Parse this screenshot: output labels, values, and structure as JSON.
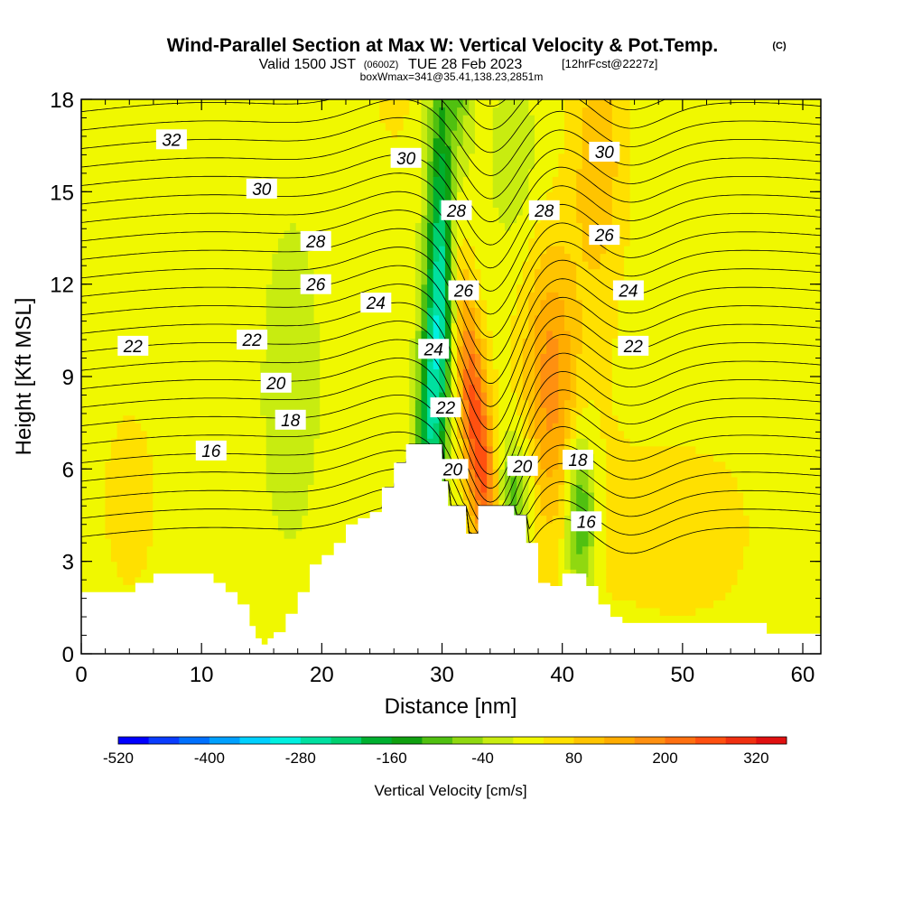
{
  "header": {
    "title": "Wind-Parallel Section at Max W: Vertical Velocity & Pot.Temp.",
    "copyright": "(C)",
    "valid_prefix": "Valid 1500 JST",
    "valid_zulu": "(0600Z)",
    "valid_date": "TUE 28 Feb 2023",
    "forecast": "[12hrFcst@2227z]",
    "box_info": "boxWmax=341@35.41,138.23,2851m"
  },
  "chart_data": {
    "type": "heatmap",
    "xlabel": "Distance [nm]",
    "ylabel": "Height [Kft MSL]",
    "xlim": [
      0,
      61.5
    ],
    "ylim": [
      0,
      18
    ],
    "x_ticks": [
      "0",
      "10",
      "20",
      "30",
      "40",
      "50",
      "60"
    ],
    "x_tick_values": [
      0,
      10,
      20,
      30,
      40,
      50,
      60
    ],
    "y_ticks": [
      "0",
      "3",
      "6",
      "9",
      "12",
      "15",
      "18"
    ],
    "y_tick_values": [
      0,
      3,
      6,
      9,
      12,
      15,
      18
    ],
    "colorbar": {
      "label": "Vertical Velocity [cm/s]",
      "tick_labels": [
        "-520",
        "-400",
        "-280",
        "-160",
        "-40",
        "80",
        "200",
        "320"
      ],
      "tick_values": [
        -520,
        -400,
        -280,
        -160,
        -40,
        80,
        200,
        320
      ],
      "range": [
        -520,
        360
      ],
      "step": 40,
      "colors": [
        "#0000ff",
        "#0a3cff",
        "#0070ff",
        "#00a0ff",
        "#00d0ff",
        "#00f0e0",
        "#00e0a0",
        "#00d070",
        "#00b030",
        "#10a010",
        "#50c010",
        "#90d810",
        "#c8ec10",
        "#f0f800",
        "#ffe000",
        "#ffc400",
        "#ffac00",
        "#ff9010",
        "#ff7010",
        "#ff5010",
        "#f03010",
        "#e01010",
        "#c00840",
        "#a00060",
        "#800070",
        "#600080"
      ]
    },
    "terrain_profile_kft": {
      "x": [
        0,
        4,
        4.5,
        6,
        8,
        10.5,
        11,
        12,
        13,
        14,
        14.5,
        15,
        15.5,
        16,
        17,
        18,
        19,
        20,
        21,
        22,
        23,
        24,
        25,
        26,
        27,
        28,
        29,
        30,
        30.5,
        31,
        31.5,
        32,
        32.5,
        33,
        34,
        35,
        36,
        37,
        38,
        39,
        40,
        41,
        42,
        43,
        44,
        45,
        50,
        55,
        57,
        61.5
      ],
      "y": [
        2.0,
        2.0,
        2.3,
        2.6,
        2.6,
        2.6,
        2.3,
        2.0,
        1.6,
        0.9,
        0.5,
        0.3,
        0.5,
        0.7,
        1.3,
        2.0,
        2.9,
        3.2,
        3.6,
        4.2,
        4.4,
        4.6,
        5.4,
        6.2,
        6.8,
        6.8,
        6.8,
        5.6,
        4.8,
        4.8,
        4.8,
        3.9,
        3.9,
        4.8,
        4.8,
        4.8,
        4.5,
        3.6,
        2.3,
        2.2,
        2.6,
        2.6,
        2.2,
        1.6,
        1.2,
        1.0,
        1.0,
        1.0,
        0.65,
        0.65
      ]
    },
    "theta_contour_labels": [
      {
        "text": "32",
        "x": 7.5,
        "y": 16.7
      },
      {
        "text": "30",
        "x": 15,
        "y": 15.1
      },
      {
        "text": "30",
        "x": 27,
        "y": 16.1
      },
      {
        "text": "30",
        "x": 43.5,
        "y": 16.3
      },
      {
        "text": "28",
        "x": 19.5,
        "y": 13.4
      },
      {
        "text": "28",
        "x": 31.2,
        "y": 14.4
      },
      {
        "text": "28",
        "x": 38.5,
        "y": 14.4
      },
      {
        "text": "26",
        "x": 19.5,
        "y": 12.0
      },
      {
        "text": "26",
        "x": 31.8,
        "y": 11.8
      },
      {
        "text": "26",
        "x": 43.5,
        "y": 13.6
      },
      {
        "text": "24",
        "x": 24.5,
        "y": 11.4
      },
      {
        "text": "24",
        "x": 29.3,
        "y": 9.9
      },
      {
        "text": "24",
        "x": 45.5,
        "y": 11.8
      },
      {
        "text": "22",
        "x": 4.3,
        "y": 10.0
      },
      {
        "text": "22",
        "x": 14.2,
        "y": 10.2
      },
      {
        "text": "22",
        "x": 30.3,
        "y": 8.0
      },
      {
        "text": "22",
        "x": 45.9,
        "y": 10.0
      },
      {
        "text": "20",
        "x": 16.2,
        "y": 8.8
      },
      {
        "text": "20",
        "x": 30.9,
        "y": 6.0
      },
      {
        "text": "20",
        "x": 36.7,
        "y": 6.1
      },
      {
        "text": "18",
        "x": 17.4,
        "y": 7.6
      },
      {
        "text": "18",
        "x": 41.3,
        "y": 6.3
      },
      {
        "text": "16",
        "x": 10.8,
        "y": 6.6
      },
      {
        "text": "16",
        "x": 42.0,
        "y": 4.3
      }
    ],
    "theta_levels_kelvin_offset": [
      16,
      18,
      20,
      22,
      24,
      26,
      28,
      30,
      32
    ]
  }
}
